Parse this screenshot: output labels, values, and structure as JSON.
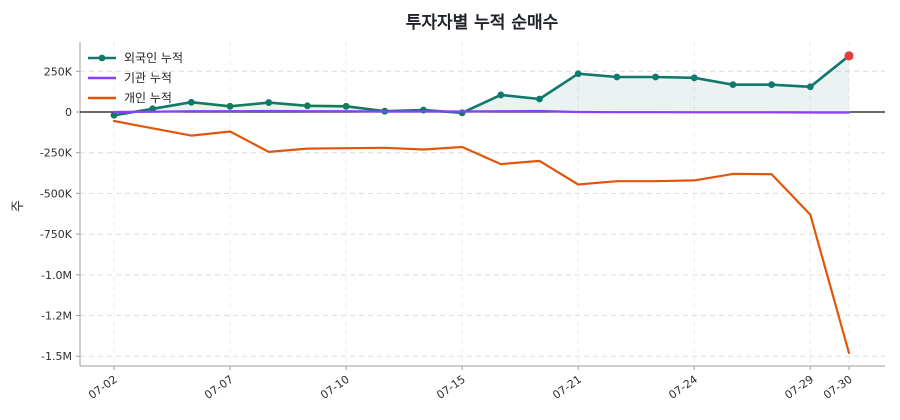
{
  "chart_data": {
    "type": "line",
    "title": "투자자별 누적 순매수",
    "xlabel": "",
    "ylabel": "주",
    "x_tick_labels": [
      "07-02",
      "07-07",
      "07-10",
      "07-15",
      "07-21",
      "07-24",
      "07-29",
      "07-30"
    ],
    "y_tick_labels": [
      "250K",
      "0",
      "-250K",
      "-500K",
      "-750K",
      "-1.0M",
      "-1.2M",
      "-1.5M"
    ],
    "y_ticks": [
      250000,
      0,
      -250000,
      -500000,
      -750000,
      -1000000,
      -1250000,
      -1500000
    ],
    "ylim": [
      -1560000,
      430000
    ],
    "grid": true,
    "legend_position": "top-left",
    "dates": [
      "07-02",
      "07-03",
      "07-04",
      "07-07",
      "07-08",
      "07-09",
      "07-10",
      "07-11",
      "07-14",
      "07-15",
      "07-16",
      "07-17",
      "07-21",
      "07-22",
      "07-23",
      "07-24",
      "07-25",
      "07-28",
      "07-29",
      "07-30"
    ],
    "series": [
      {
        "name": "외국인 누적",
        "color": "#12786b",
        "marker": true,
        "fill": true,
        "values": [
          -20000,
          20000,
          60000,
          35000,
          58000,
          38000,
          35000,
          5000,
          12000,
          -5000,
          105000,
          80000,
          235000,
          215000,
          215000,
          210000,
          168000,
          168000,
          155000,
          345000
        ]
      },
      {
        "name": "기관 누적",
        "color": "#8a3ffc",
        "marker": false,
        "fill": false,
        "values": [
          0,
          2000,
          5000,
          5000,
          6000,
          5000,
          5000,
          3000,
          4000,
          3000,
          5000,
          6000,
          0,
          -1000,
          -1000,
          -2000,
          -2000,
          -2000,
          -3000,
          -3000
        ]
      },
      {
        "name": "개인 누적",
        "color": "#e0560b",
        "marker": false,
        "fill": false,
        "values": [
          -55000,
          -100000,
          -145000,
          -120000,
          -245000,
          -225000,
          -222000,
          -220000,
          -230000,
          -215000,
          -320000,
          -300000,
          -445000,
          -425000,
          -425000,
          -420000,
          -380000,
          -382000,
          -630000,
          -1480000
        ]
      }
    ],
    "highlight_last_point_color": "#e53e3e"
  }
}
